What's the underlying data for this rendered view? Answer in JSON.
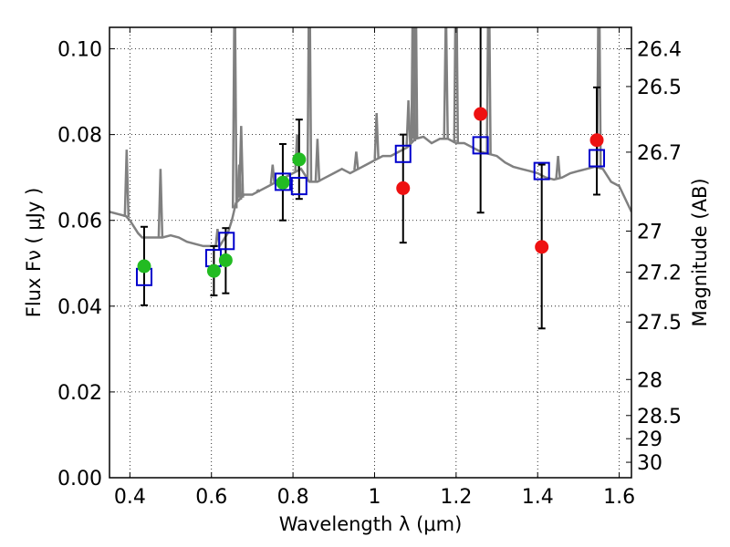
{
  "chart_data": {
    "type": "scatter",
    "xlabel": "Wavelength  λ (μm)",
    "ylabel": "Flux  Fν  ( μJy )",
    "y2label": "Magnitude (AB)",
    "xlim": [
      0.35,
      1.63
    ],
    "ylim": [
      0.0,
      0.105
    ],
    "grid": true,
    "x_ticks": [
      0.4,
      0.6,
      0.8,
      1.0,
      1.2,
      1.4,
      1.6
    ],
    "x_tick_labels": [
      "0.4",
      "0.6",
      "0.8",
      "1",
      "1.2",
      "1.4",
      "1.6"
    ],
    "y_ticks": [
      0.0,
      0.02,
      0.04,
      0.06,
      0.08,
      0.1
    ],
    "y_tick_labels": [
      "0.00",
      "0.02",
      "0.04",
      "0.06",
      "0.08",
      "0.10"
    ],
    "mag_ticks": [
      {
        "label": "26.4",
        "flux": 0.1
      },
      {
        "label": "26.5",
        "flux": 0.0912
      },
      {
        "label": "26.7",
        "flux": 0.0759
      },
      {
        "label": "27",
        "flux": 0.0575
      },
      {
        "label": "27.2",
        "flux": 0.0479
      },
      {
        "label": "27.5",
        "flux": 0.0363
      },
      {
        "label": "28",
        "flux": 0.0229
      },
      {
        "label": "28.5",
        "flux": 0.0145
      },
      {
        "label": "29",
        "flux": 0.0091
      },
      {
        "label": "30",
        "flux": 0.0036
      }
    ],
    "series": [
      {
        "kind": "model-spectrum",
        "color": "#808080",
        "points": [
          [
            0.35,
            0.062
          ],
          [
            0.37,
            0.0615
          ],
          [
            0.39,
            0.061
          ],
          [
            0.4,
            0.06
          ],
          [
            0.42,
            0.057
          ],
          [
            0.43,
            0.056
          ],
          [
            0.44,
            0.056
          ],
          [
            0.46,
            0.056
          ],
          [
            0.48,
            0.056
          ],
          [
            0.5,
            0.0565
          ],
          [
            0.52,
            0.056
          ],
          [
            0.54,
            0.055
          ],
          [
            0.56,
            0.0545
          ],
          [
            0.58,
            0.054
          ],
          [
            0.6,
            0.054
          ],
          [
            0.62,
            0.054
          ],
          [
            0.64,
            0.057
          ],
          [
            0.65,
            0.06
          ],
          [
            0.66,
            0.064
          ],
          [
            0.68,
            0.066
          ],
          [
            0.7,
            0.066
          ],
          [
            0.72,
            0.067
          ],
          [
            0.74,
            0.068
          ],
          [
            0.76,
            0.069
          ],
          [
            0.78,
            0.07
          ],
          [
            0.8,
            0.071
          ],
          [
            0.82,
            0.072
          ],
          [
            0.84,
            0.069
          ],
          [
            0.86,
            0.069
          ],
          [
            0.88,
            0.07
          ],
          [
            0.9,
            0.071
          ],
          [
            0.92,
            0.072
          ],
          [
            0.94,
            0.071
          ],
          [
            0.96,
            0.072
          ],
          [
            0.98,
            0.073
          ],
          [
            1.0,
            0.074
          ],
          [
            1.02,
            0.075
          ],
          [
            1.04,
            0.075
          ],
          [
            1.06,
            0.076
          ],
          [
            1.08,
            0.077
          ],
          [
            1.1,
            0.079
          ],
          [
            1.12,
            0.0795
          ],
          [
            1.14,
            0.078
          ],
          [
            1.16,
            0.079
          ],
          [
            1.18,
            0.079
          ],
          [
            1.2,
            0.078
          ],
          [
            1.22,
            0.078
          ],
          [
            1.24,
            0.077
          ],
          [
            1.26,
            0.076
          ],
          [
            1.28,
            0.0755
          ],
          [
            1.3,
            0.075
          ],
          [
            1.32,
            0.0735
          ],
          [
            1.34,
            0.0725
          ],
          [
            1.36,
            0.072
          ],
          [
            1.38,
            0.0715
          ],
          [
            1.4,
            0.071
          ],
          [
            1.42,
            0.07
          ],
          [
            1.44,
            0.0695
          ],
          [
            1.46,
            0.07
          ],
          [
            1.48,
            0.071
          ],
          [
            1.5,
            0.0715
          ],
          [
            1.52,
            0.072
          ],
          [
            1.54,
            0.0725
          ],
          [
            1.56,
            0.072
          ],
          [
            1.58,
            0.069
          ],
          [
            1.6,
            0.068
          ],
          [
            1.62,
            0.064
          ],
          [
            1.63,
            0.062
          ]
        ],
        "emission_lines": [
          [
            0.392,
            0.0765
          ],
          [
            0.475,
            0.072
          ],
          [
            0.615,
            0.058
          ],
          [
            0.657,
            0.12
          ],
          [
            0.668,
            0.073
          ],
          [
            0.673,
            0.082
          ],
          [
            0.715,
            0.067
          ],
          [
            0.75,
            0.073
          ],
          [
            0.81,
            0.08
          ],
          [
            0.84,
            0.125
          ],
          [
            0.86,
            0.079
          ],
          [
            0.955,
            0.076
          ],
          [
            1.005,
            0.085
          ],
          [
            1.083,
            0.088
          ],
          [
            1.095,
            0.125
          ],
          [
            1.1,
            0.125
          ],
          [
            1.094,
            0.085
          ],
          [
            1.175,
            0.11
          ],
          [
            1.2,
            0.125
          ],
          [
            1.28,
            0.125
          ],
          [
            1.45,
            0.075
          ],
          [
            1.55,
            0.125
          ]
        ]
      },
      {
        "kind": "model-photometry",
        "marker": "open-square",
        "color": "#0000cc",
        "points": [
          [
            0.435,
            0.0468
          ],
          [
            0.605,
            0.0512
          ],
          [
            0.637,
            0.0552
          ],
          [
            0.775,
            0.069
          ],
          [
            0.815,
            0.068
          ],
          [
            1.07,
            0.0755
          ],
          [
            1.26,
            0.0775
          ],
          [
            1.41,
            0.0715
          ],
          [
            1.545,
            0.0745
          ]
        ]
      },
      {
        "kind": "observed-optical",
        "marker": "filled-circle",
        "color": "#22bb22",
        "points": [
          {
            "x": 0.435,
            "y": 0.0493,
            "err": [
              0.0402,
              0.0585
            ]
          },
          {
            "x": 0.606,
            "y": 0.0482,
            "err": [
              0.0425,
              0.054
            ]
          },
          {
            "x": 0.635,
            "y": 0.0507,
            "err": [
              0.043,
              0.0582
            ]
          },
          {
            "x": 0.775,
            "y": 0.0688,
            "err": [
              0.06,
              0.0778
            ]
          },
          {
            "x": 0.815,
            "y": 0.0742,
            "err": [
              0.065,
              0.0835
            ]
          }
        ]
      },
      {
        "kind": "observed-nir",
        "marker": "filled-circle",
        "color": "#ee1111",
        "points": [
          {
            "x": 1.07,
            "y": 0.0675,
            "err": [
              0.0548,
              0.08
            ]
          },
          {
            "x": 1.26,
            "y": 0.0848,
            "err": [
              0.0618,
              0.11
            ]
          },
          {
            "x": 1.41,
            "y": 0.0538,
            "err": [
              0.0348,
              0.073
            ]
          },
          {
            "x": 1.545,
            "y": 0.0787,
            "err": [
              0.066,
              0.091
            ]
          }
        ]
      }
    ]
  }
}
